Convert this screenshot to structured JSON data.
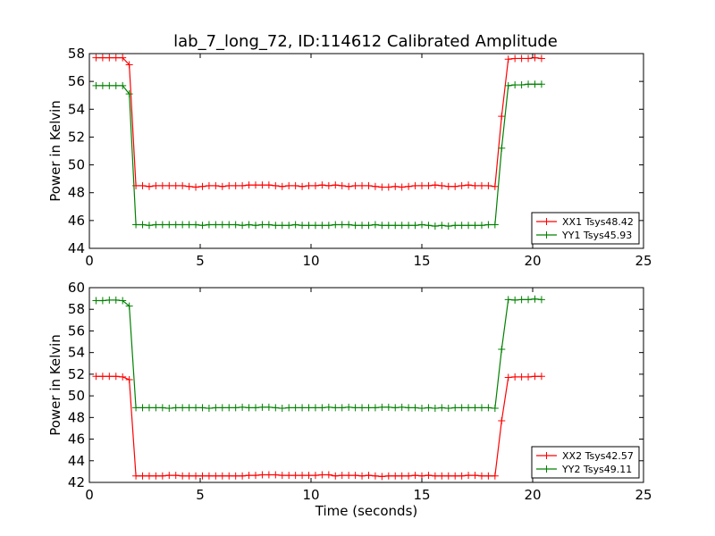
{
  "figure": {
    "title": "lab_7_long_72, ID:114612 Calibrated Amplitude"
  },
  "chart_data": [
    {
      "type": "line",
      "xlabel": "",
      "ylabel": "Power in Kelvin",
      "xlim": [
        0,
        25
      ],
      "ylim": [
        44,
        58
      ],
      "xticks": [
        "0",
        "5",
        "10",
        "15",
        "20",
        "25"
      ],
      "yticks": [
        "44",
        "46",
        "48",
        "50",
        "52",
        "54",
        "56",
        "58"
      ],
      "legend_position": "lower-right",
      "grid": false,
      "series": [
        {
          "name": "XX1 Tsys48.42",
          "color": "#ff0000",
          "x": [
            0.3,
            0.6,
            0.9,
            1.2,
            1.5,
            1.8,
            2.1,
            2.4,
            2.7,
            3.0,
            3.3,
            3.6,
            3.9,
            4.2,
            4.5,
            4.8,
            5.1,
            5.4,
            5.7,
            6.0,
            6.3,
            6.6,
            6.9,
            7.2,
            7.5,
            7.8,
            8.1,
            8.4,
            8.7,
            9.0,
            9.3,
            9.6,
            9.9,
            10.2,
            10.5,
            10.8,
            11.1,
            11.4,
            11.7,
            12.0,
            12.3,
            12.6,
            12.9,
            13.2,
            13.5,
            13.8,
            14.1,
            14.4,
            14.7,
            15.0,
            15.3,
            15.6,
            15.9,
            16.2,
            16.5,
            16.8,
            17.1,
            17.4,
            17.7,
            18.0,
            18.3,
            18.6,
            18.9,
            19.2,
            19.5,
            19.8,
            20.1,
            20.4
          ],
          "y": [
            57.7,
            57.7,
            57.7,
            57.7,
            57.7,
            57.2,
            48.5,
            48.5,
            48.45,
            48.5,
            48.5,
            48.5,
            48.5,
            48.5,
            48.45,
            48.4,
            48.45,
            48.5,
            48.5,
            48.45,
            48.5,
            48.5,
            48.5,
            48.55,
            48.55,
            48.55,
            48.55,
            48.5,
            48.45,
            48.5,
            48.5,
            48.45,
            48.5,
            48.5,
            48.55,
            48.5,
            48.55,
            48.5,
            48.45,
            48.5,
            48.5,
            48.5,
            48.45,
            48.4,
            48.4,
            48.45,
            48.4,
            48.45,
            48.5,
            48.5,
            48.5,
            48.55,
            48.5,
            48.45,
            48.45,
            48.5,
            48.55,
            48.5,
            48.5,
            48.5,
            48.45,
            53.5,
            57.6,
            57.65,
            57.65,
            57.65,
            57.7,
            57.65
          ]
        },
        {
          "name": "YY1 Tsys45.93",
          "color": "#008000",
          "x": [
            0.3,
            0.6,
            0.9,
            1.2,
            1.5,
            1.8,
            2.1,
            2.4,
            2.7,
            3.0,
            3.3,
            3.6,
            3.9,
            4.2,
            4.5,
            4.8,
            5.1,
            5.4,
            5.7,
            6.0,
            6.3,
            6.6,
            6.9,
            7.2,
            7.5,
            7.8,
            8.1,
            8.4,
            8.7,
            9.0,
            9.3,
            9.6,
            9.9,
            10.2,
            10.5,
            10.8,
            11.1,
            11.4,
            11.7,
            12.0,
            12.3,
            12.6,
            12.9,
            13.2,
            13.5,
            13.8,
            14.1,
            14.4,
            14.7,
            15.0,
            15.3,
            15.6,
            15.9,
            16.2,
            16.5,
            16.8,
            17.1,
            17.4,
            17.7,
            18.0,
            18.3,
            18.6,
            18.9,
            19.2,
            19.5,
            19.8,
            20.1,
            20.4
          ],
          "y": [
            55.7,
            55.7,
            55.7,
            55.7,
            55.7,
            55.1,
            45.7,
            45.7,
            45.65,
            45.7,
            45.7,
            45.7,
            45.7,
            45.7,
            45.7,
            45.7,
            45.65,
            45.7,
            45.7,
            45.7,
            45.7,
            45.7,
            45.65,
            45.7,
            45.65,
            45.7,
            45.7,
            45.65,
            45.65,
            45.65,
            45.7,
            45.65,
            45.65,
            45.65,
            45.65,
            45.65,
            45.7,
            45.7,
            45.7,
            45.65,
            45.65,
            45.65,
            45.7,
            45.65,
            45.65,
            45.65,
            45.65,
            45.65,
            45.65,
            45.7,
            45.65,
            45.6,
            45.65,
            45.6,
            45.65,
            45.65,
            45.65,
            45.65,
            45.65,
            45.7,
            45.7,
            51.2,
            55.7,
            55.75,
            55.75,
            55.8,
            55.8,
            55.8
          ]
        }
      ]
    },
    {
      "type": "line",
      "xlabel": "Time (seconds)",
      "ylabel": "Power in Kelvin",
      "xlim": [
        0,
        25
      ],
      "ylim": [
        42,
        60
      ],
      "xticks": [
        "0",
        "5",
        "10",
        "15",
        "20",
        "25"
      ],
      "yticks": [
        "42",
        "44",
        "46",
        "48",
        "50",
        "52",
        "54",
        "56",
        "58",
        "60"
      ],
      "legend_position": "lower-right",
      "grid": false,
      "series": [
        {
          "name": "XX2 Tsys42.57",
          "color": "#ff0000",
          "x": [
            0.3,
            0.6,
            0.9,
            1.2,
            1.5,
            1.8,
            2.1,
            2.4,
            2.7,
            3.0,
            3.3,
            3.6,
            3.9,
            4.2,
            4.5,
            4.8,
            5.1,
            5.4,
            5.7,
            6.0,
            6.3,
            6.6,
            6.9,
            7.2,
            7.5,
            7.8,
            8.1,
            8.4,
            8.7,
            9.0,
            9.3,
            9.6,
            9.9,
            10.2,
            10.5,
            10.8,
            11.1,
            11.4,
            11.7,
            12.0,
            12.3,
            12.6,
            12.9,
            13.2,
            13.5,
            13.8,
            14.1,
            14.4,
            14.7,
            15.0,
            15.3,
            15.6,
            15.9,
            16.2,
            16.5,
            16.8,
            17.1,
            17.4,
            17.7,
            18.0,
            18.3,
            18.6,
            18.9,
            19.2,
            19.5,
            19.8,
            20.1,
            20.4
          ],
          "y": [
            51.8,
            51.8,
            51.8,
            51.8,
            51.75,
            51.5,
            42.6,
            42.6,
            42.6,
            42.6,
            42.6,
            42.65,
            42.65,
            42.6,
            42.6,
            42.6,
            42.6,
            42.6,
            42.6,
            42.6,
            42.6,
            42.6,
            42.6,
            42.65,
            42.65,
            42.7,
            42.7,
            42.7,
            42.65,
            42.65,
            42.65,
            42.65,
            42.65,
            42.65,
            42.7,
            42.7,
            42.6,
            42.65,
            42.65,
            42.65,
            42.6,
            42.65,
            42.6,
            42.55,
            42.6,
            42.6,
            42.6,
            42.6,
            42.65,
            42.6,
            42.65,
            42.6,
            42.6,
            42.6,
            42.6,
            42.6,
            42.65,
            42.65,
            42.6,
            42.6,
            42.6,
            47.7,
            51.7,
            51.75,
            51.75,
            51.75,
            51.8,
            51.8
          ]
        },
        {
          "name": "YY2 Tsys49.11",
          "color": "#008000",
          "x": [
            0.3,
            0.6,
            0.9,
            1.2,
            1.5,
            1.8,
            2.1,
            2.4,
            2.7,
            3.0,
            3.3,
            3.6,
            3.9,
            4.2,
            4.5,
            4.8,
            5.1,
            5.4,
            5.7,
            6.0,
            6.3,
            6.6,
            6.9,
            7.2,
            7.5,
            7.8,
            8.1,
            8.4,
            8.7,
            9.0,
            9.3,
            9.6,
            9.9,
            10.2,
            10.5,
            10.8,
            11.1,
            11.4,
            11.7,
            12.0,
            12.3,
            12.6,
            12.9,
            13.2,
            13.5,
            13.8,
            14.1,
            14.4,
            14.7,
            15.0,
            15.3,
            15.6,
            15.9,
            16.2,
            16.5,
            16.8,
            17.1,
            17.4,
            17.7,
            18.0,
            18.3,
            18.6,
            18.9,
            19.2,
            19.5,
            19.8,
            20.1,
            20.4
          ],
          "y": [
            58.8,
            58.8,
            58.85,
            58.85,
            58.8,
            58.3,
            48.9,
            48.9,
            48.9,
            48.9,
            48.9,
            48.85,
            48.9,
            48.9,
            48.9,
            48.9,
            48.9,
            48.85,
            48.9,
            48.9,
            48.9,
            48.9,
            48.95,
            48.9,
            48.9,
            48.95,
            48.95,
            48.9,
            48.85,
            48.9,
            48.9,
            48.9,
            48.9,
            48.9,
            48.9,
            48.95,
            48.9,
            48.9,
            48.95,
            48.9,
            48.9,
            48.9,
            48.9,
            48.95,
            48.95,
            48.9,
            48.95,
            48.9,
            48.9,
            48.85,
            48.9,
            48.85,
            48.9,
            48.85,
            48.9,
            48.9,
            48.9,
            48.9,
            48.9,
            48.9,
            48.85,
            54.3,
            58.9,
            58.85,
            58.9,
            58.9,
            58.95,
            58.9
          ]
        }
      ]
    }
  ]
}
